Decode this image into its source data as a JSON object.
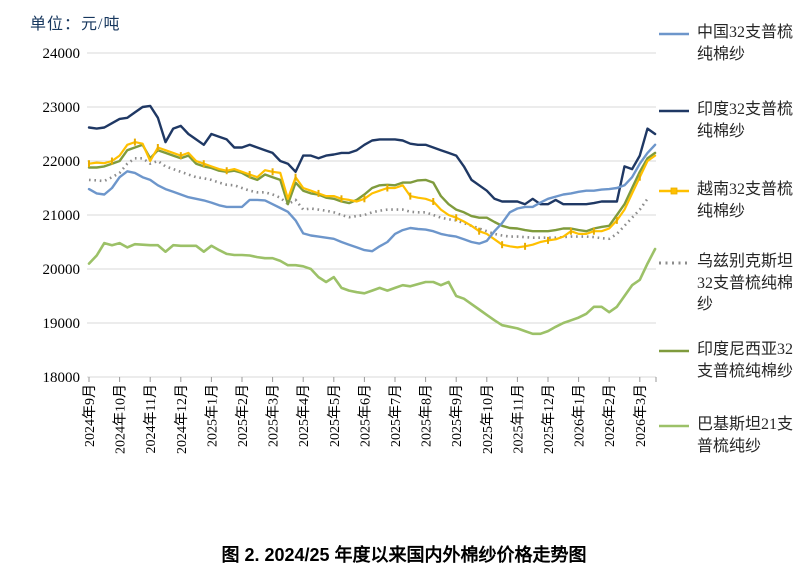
{
  "unit_label": "单位：元/吨",
  "caption": "图 2. 2024/25 年度以来国内外棉纱价格走势图",
  "chart_data": {
    "type": "line",
    "title": "图 2. 2024/25 年度以来国内外棉纱价格走势图",
    "y_axis_unit": "元/吨",
    "ylim": [
      18000,
      24000
    ],
    "y_ticks": [
      24000,
      23000,
      22000,
      21000,
      20000,
      19000,
      18000
    ],
    "grid": "horizontal",
    "legend_position": "right",
    "x_categories": [
      "2024年9月",
      "2024年10月",
      "2024年11月",
      "2024年12月",
      "2025年1月",
      "2025年2月",
      "2025年3月",
      "2025年4月",
      "2025年5月",
      "2025年6月",
      "2025年7月",
      "2025年8月",
      "2025年9月",
      "2025年10月",
      "2025年11月",
      "2025年12月",
      "2026年1月",
      "2026年2月",
      "2026年3月"
    ],
    "x_step_months": 0.25,
    "x_start_category_index": 0,
    "series": [
      {
        "key": "uzbekistan-32s",
        "name": "乌兹别克斯坦32支普梳纯棉纱",
        "color": "#8C8C8C",
        "style": "dotted",
        "values": [
          21650,
          21640,
          21630,
          21700,
          21780,
          21950,
          22050,
          22050,
          21950,
          22000,
          21900,
          21850,
          21800,
          21750,
          21700,
          21680,
          21650,
          21600,
          21560,
          21550,
          21500,
          21450,
          21420,
          21420,
          21380,
          21320,
          21200,
          21280,
          21100,
          21120,
          21100,
          21080,
          21050,
          21000,
          20960,
          20980,
          21000,
          21050,
          21080,
          21100,
          21100,
          21100,
          21060,
          21050,
          21050,
          21000,
          20950,
          20920,
          20900,
          20850,
          20800,
          20750,
          20700,
          20650,
          20620,
          20600,
          20600,
          20590,
          20580,
          20580,
          20580,
          20580,
          20590,
          20600,
          20600,
          20600,
          20590,
          20570,
          20560,
          20650,
          20800,
          20950,
          21100,
          21300,
          null
        ]
      },
      {
        "key": "indonesia-32s",
        "name": "印度尼西亚32支普梳纯棉纱",
        "color": "#7F9B3D",
        "style": "solid",
        "values": [
          21880,
          21880,
          21900,
          21950,
          22000,
          22200,
          22250,
          22300,
          22050,
          22200,
          22150,
          22100,
          22050,
          22100,
          21950,
          21900,
          21870,
          21820,
          21800,
          21820,
          21780,
          21700,
          21650,
          21750,
          21700,
          21650,
          21200,
          21600,
          21450,
          21400,
          21380,
          21320,
          21300,
          21250,
          21220,
          21280,
          21380,
          21500,
          21550,
          21560,
          21550,
          21600,
          21600,
          21640,
          21650,
          21600,
          21350,
          21200,
          21100,
          21050,
          20980,
          20950,
          20950,
          20870,
          20800,
          20760,
          20750,
          20720,
          20700,
          20700,
          20700,
          20720,
          20750,
          20750,
          20720,
          20700,
          20750,
          20780,
          20800,
          21000,
          21200,
          21500,
          21800,
          22050,
          22150
        ]
      },
      {
        "key": "vietnam-32s",
        "name": "越南32支普梳纯棉纱",
        "color": "#FFC000",
        "style": "solid-marker",
        "values": [
          21950,
          21970,
          21960,
          22000,
          22100,
          22300,
          22350,
          22320,
          22000,
          22250,
          22200,
          22150,
          22100,
          22150,
          22000,
          21950,
          21900,
          21850,
          21820,
          21850,
          21800,
          21750,
          21700,
          21830,
          21800,
          21780,
          21300,
          21700,
          21500,
          21450,
          21400,
          21350,
          21350,
          21300,
          21280,
          21250,
          21300,
          21400,
          21450,
          21500,
          21500,
          21550,
          21350,
          21320,
          21300,
          21250,
          21100,
          21000,
          20950,
          20880,
          20800,
          20700,
          20650,
          20550,
          20450,
          20420,
          20400,
          20420,
          20450,
          20500,
          20530,
          20550,
          20600,
          20700,
          20650,
          20650,
          20700,
          20700,
          20750,
          20900,
          21100,
          21400,
          21700,
          22000,
          22100
        ]
      },
      {
        "key": "pakistan-21s",
        "name": "巴基斯坦21支普梳纯纱",
        "color": "#9CC168",
        "style": "solid",
        "values": [
          20100,
          20250,
          20480,
          20440,
          20480,
          20400,
          20460,
          20450,
          20440,
          20440,
          20320,
          20440,
          20430,
          20430,
          20430,
          20320,
          20430,
          20350,
          20280,
          20260,
          20260,
          20250,
          20220,
          20200,
          20200,
          20150,
          20070,
          20070,
          20050,
          20000,
          19850,
          19760,
          19850,
          19650,
          19600,
          19570,
          19550,
          19600,
          19650,
          19600,
          19650,
          19700,
          19680,
          19720,
          19760,
          19760,
          19700,
          19760,
          19500,
          19450,
          19350,
          19250,
          19150,
          19050,
          18960,
          18930,
          18900,
          18850,
          18800,
          18800,
          18850,
          18930,
          19000,
          19050,
          19100,
          19170,
          19300,
          19300,
          19200,
          19300,
          19500,
          19700,
          19800,
          20100,
          20370
        ]
      },
      {
        "key": "india-32s",
        "name": "印度32支普梳纯棉纱",
        "color": "#1F3864",
        "style": "solid",
        "values": [
          22620,
          22600,
          22620,
          22700,
          22780,
          22800,
          22900,
          23000,
          23020,
          22800,
          22350,
          22600,
          22650,
          22500,
          22400,
          22300,
          22500,
          22450,
          22400,
          22250,
          22250,
          22300,
          22250,
          22200,
          22150,
          22000,
          21950,
          21800,
          22100,
          22100,
          22050,
          22100,
          22120,
          22150,
          22150,
          22200,
          22300,
          22380,
          22400,
          22400,
          22400,
          22380,
          22320,
          22300,
          22300,
          22250,
          22200,
          22150,
          22100,
          21900,
          21650,
          21550,
          21450,
          21300,
          21250,
          21250,
          21250,
          21200,
          21300,
          21200,
          21200,
          21280,
          21200,
          21200,
          21200,
          21200,
          21220,
          21250,
          21250,
          21250,
          21900,
          21850,
          22100,
          22600,
          22500
        ]
      },
      {
        "key": "china-32s",
        "name": "中国32支普梳纯棉纱",
        "color": "#6D96CB",
        "style": "solid",
        "values": [
          21480,
          21400,
          21380,
          21500,
          21700,
          21810,
          21780,
          21700,
          21650,
          21550,
          21480,
          21430,
          21380,
          21330,
          21300,
          21270,
          21230,
          21180,
          21150,
          21150,
          21150,
          21280,
          21280,
          21270,
          21200,
          21130,
          21060,
          20900,
          20660,
          20620,
          20600,
          20580,
          20560,
          20500,
          20450,
          20400,
          20350,
          20330,
          20420,
          20500,
          20650,
          20720,
          20760,
          20740,
          20730,
          20700,
          20650,
          20620,
          20600,
          20550,
          20500,
          20470,
          20520,
          20700,
          20850,
          21050,
          21120,
          21150,
          21150,
          21230,
          21300,
          21340,
          21380,
          21400,
          21430,
          21450,
          21450,
          21470,
          21480,
          21500,
          21550,
          21700,
          21950,
          22150,
          22300
        ]
      }
    ],
    "legend_order": [
      "china-32s",
      "india-32s",
      "vietnam-32s",
      "uzbekistan-32s",
      "indonesia-32s",
      "pakistan-21s"
    ]
  }
}
